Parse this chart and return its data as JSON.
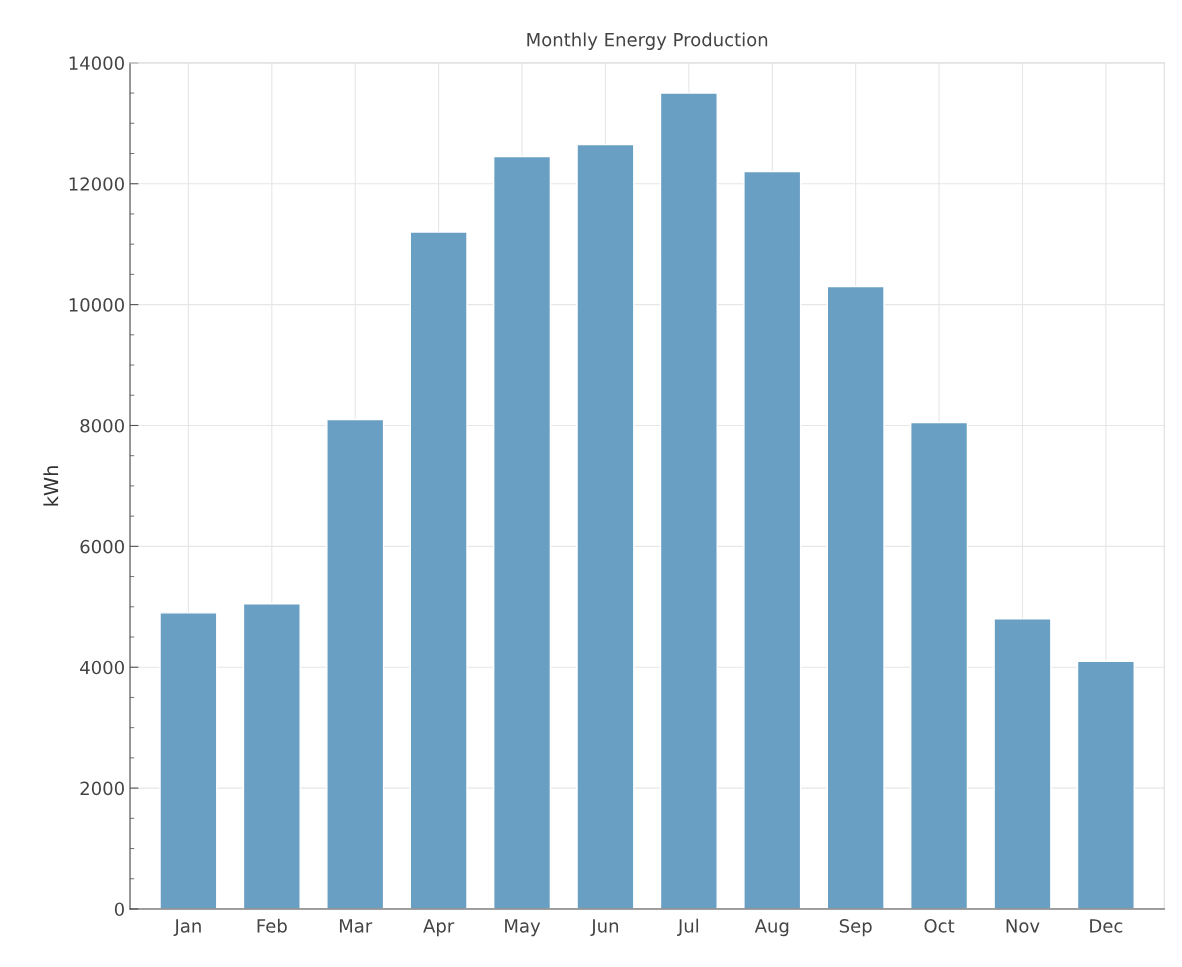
{
  "chart_data": {
    "type": "bar",
    "title": "Monthly Energy Production",
    "ylabel": "kWh",
    "categories": [
      "Jan",
      "Feb",
      "Mar",
      "Apr",
      "May",
      "Jun",
      "Jul",
      "Aug",
      "Sep",
      "Oct",
      "Nov",
      "Dec"
    ],
    "values": [
      4900,
      5050,
      8100,
      11200,
      12450,
      12650,
      13500,
      12200,
      10300,
      8050,
      4800,
      4100
    ],
    "color": "#6a9fc4",
    "ylim": [
      0,
      14000
    ],
    "yticks": [
      0,
      2000,
      4000,
      6000,
      8000,
      10000,
      12000,
      14000
    ],
    "grid": true
  }
}
